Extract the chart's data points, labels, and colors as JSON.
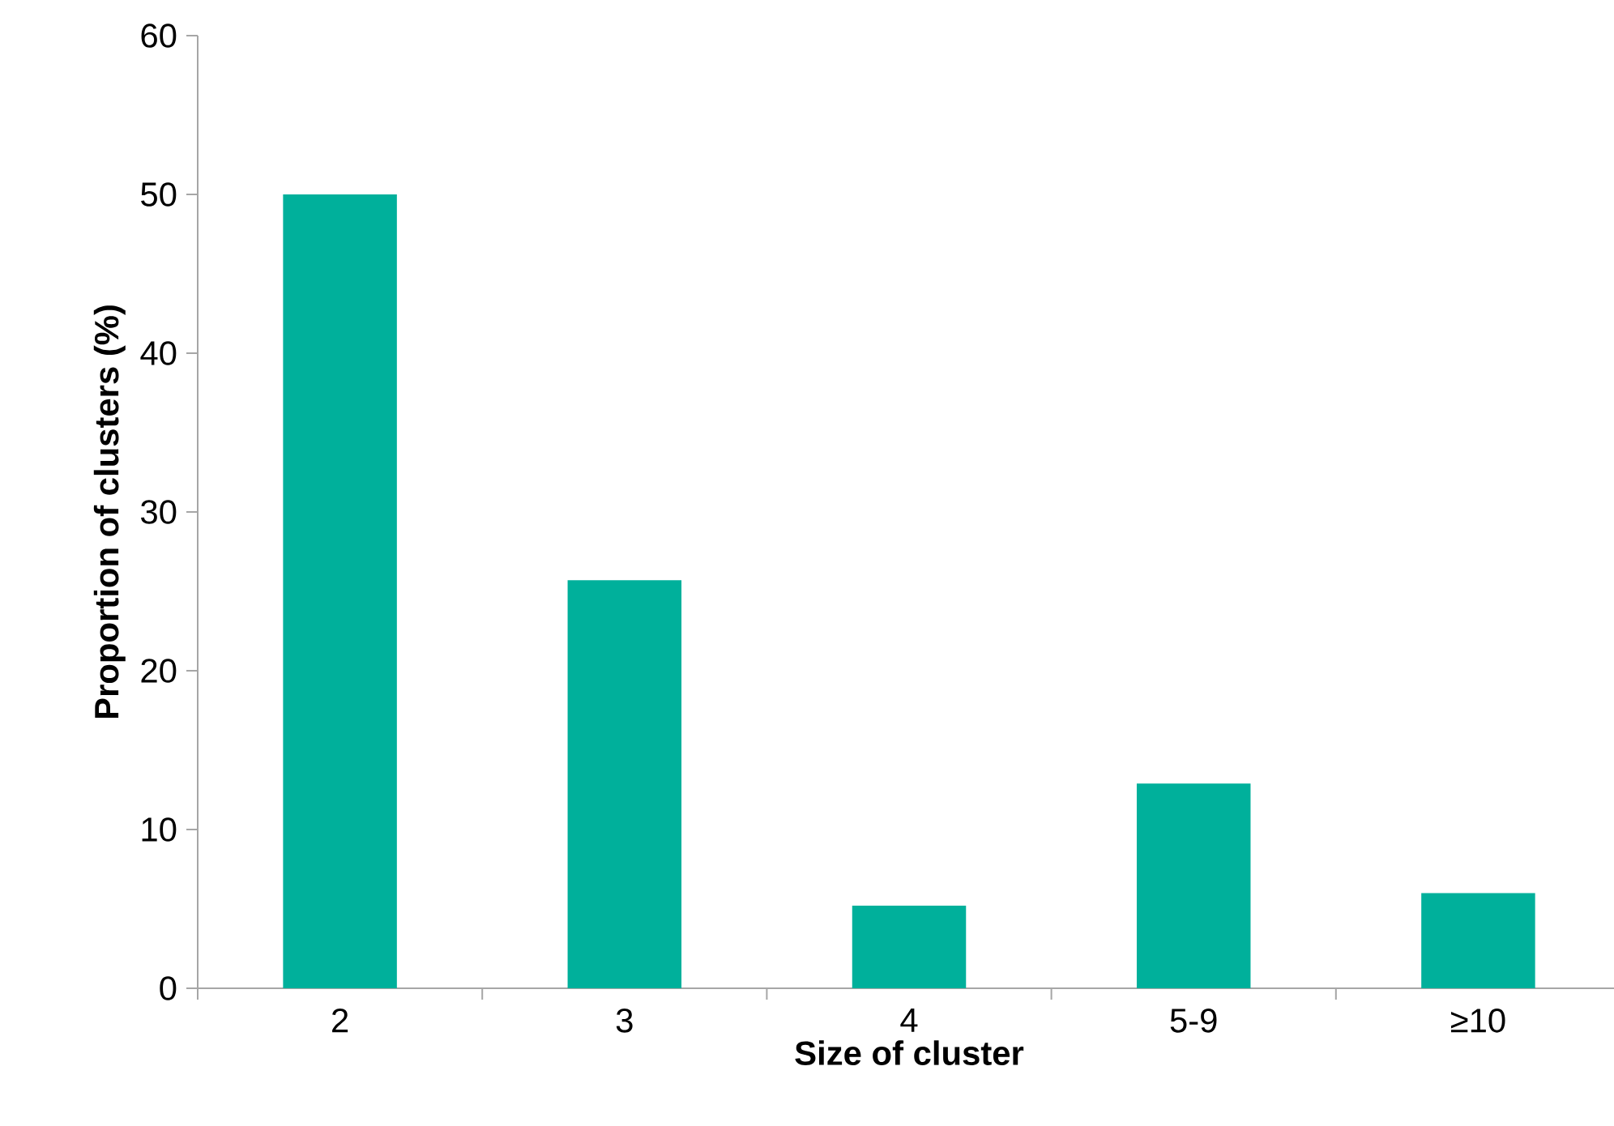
{
  "chart_data": {
    "type": "bar",
    "xlabel": "Size of cluster",
    "ylabel": "Proportion of clusters (%)",
    "categories": [
      "2",
      "3",
      "4",
      "5-9",
      "≥10"
    ],
    "values": [
      50,
      25.7,
      5.2,
      12.9,
      6.0
    ],
    "color": "#00b09b",
    "ylim": [
      0,
      60
    ],
    "yticks": [
      0,
      10,
      20,
      30,
      40,
      50,
      60
    ],
    "grid": false
  }
}
